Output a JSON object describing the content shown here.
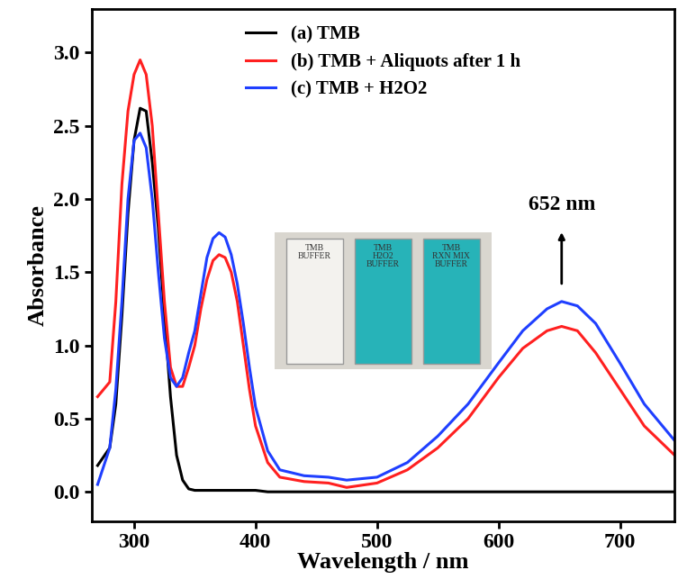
{
  "chart_data": {
    "type": "line",
    "x_label": "Wavelength / nm",
    "y_label": "Absorbance",
    "x": [
      270,
      280,
      285,
      290,
      295,
      300,
      305,
      310,
      315,
      320,
      325,
      330,
      335,
      340,
      345,
      350,
      355,
      360,
      365,
      370,
      375,
      380,
      385,
      390,
      395,
      400,
      410,
      420,
      440,
      460,
      475,
      500,
      525,
      550,
      575,
      600,
      620,
      640,
      652,
      665,
      680,
      700,
      720,
      745
    ],
    "series": [
      {
        "name": "(a) TMB",
        "color": "#000000",
        "values": [
          0.18,
          0.3,
          0.6,
          1.2,
          1.9,
          2.4,
          2.62,
          2.6,
          2.25,
          1.8,
          1.2,
          0.65,
          0.25,
          0.08,
          0.02,
          0.01,
          0.01,
          0.01,
          0.01,
          0.01,
          0.01,
          0.01,
          0.01,
          0.01,
          0.01,
          0.01,
          0.0,
          0.0,
          0.0,
          0.0,
          0.0,
          0.0,
          0.0,
          0.0,
          0.0,
          0.0,
          0.0,
          0.0,
          0.0,
          0.0,
          0.0,
          0.0,
          0.0,
          0.0
        ]
      },
      {
        "name": "(b) TMB + Aliquots after 1 h",
        "color": "#ff2020",
        "values": [
          0.65,
          0.75,
          1.3,
          2.1,
          2.6,
          2.85,
          2.95,
          2.85,
          2.5,
          1.9,
          1.3,
          0.85,
          0.72,
          0.72,
          0.85,
          1.0,
          1.25,
          1.45,
          1.58,
          1.62,
          1.6,
          1.5,
          1.3,
          1.0,
          0.7,
          0.45,
          0.2,
          0.1,
          0.07,
          0.06,
          0.03,
          0.06,
          0.15,
          0.3,
          0.5,
          0.78,
          0.98,
          1.1,
          1.13,
          1.1,
          0.95,
          0.7,
          0.45,
          0.25
        ]
      },
      {
        "name": "(c) TMB + H2O2",
        "color": "#1f3fff",
        "values": [
          0.05,
          0.3,
          0.7,
          1.3,
          2.0,
          2.4,
          2.45,
          2.35,
          2.0,
          1.5,
          1.05,
          0.78,
          0.72,
          0.78,
          0.95,
          1.1,
          1.35,
          1.6,
          1.73,
          1.77,
          1.74,
          1.62,
          1.42,
          1.15,
          0.85,
          0.58,
          0.28,
          0.15,
          0.11,
          0.1,
          0.08,
          0.1,
          0.2,
          0.38,
          0.6,
          0.88,
          1.1,
          1.25,
          1.3,
          1.27,
          1.15,
          0.88,
          0.6,
          0.35
        ]
      }
    ],
    "xlim": [
      265,
      745
    ],
    "ylim": [
      -0.2,
      3.3
    ],
    "xticks": [
      300,
      400,
      500,
      600,
      700
    ],
    "yticks": [
      {
        "value": 0,
        "label": "0.0"
      },
      0.5,
      {
        "value": 1,
        "label": "1.0"
      },
      1.5,
      {
        "value": 2,
        "label": "2.0"
      },
      2.5,
      {
        "value": 3,
        "label": "3.0"
      }
    ],
    "legend": "upper center",
    "grid": false,
    "annotations": [
      {
        "text": "652 nm",
        "x": 652
      }
    ],
    "inset_labels": [
      "TMB\nBUFFER",
      "TMB\nH2O2\nBUFFER",
      "TMB\nRXN MIX\nBUFFER"
    ]
  }
}
